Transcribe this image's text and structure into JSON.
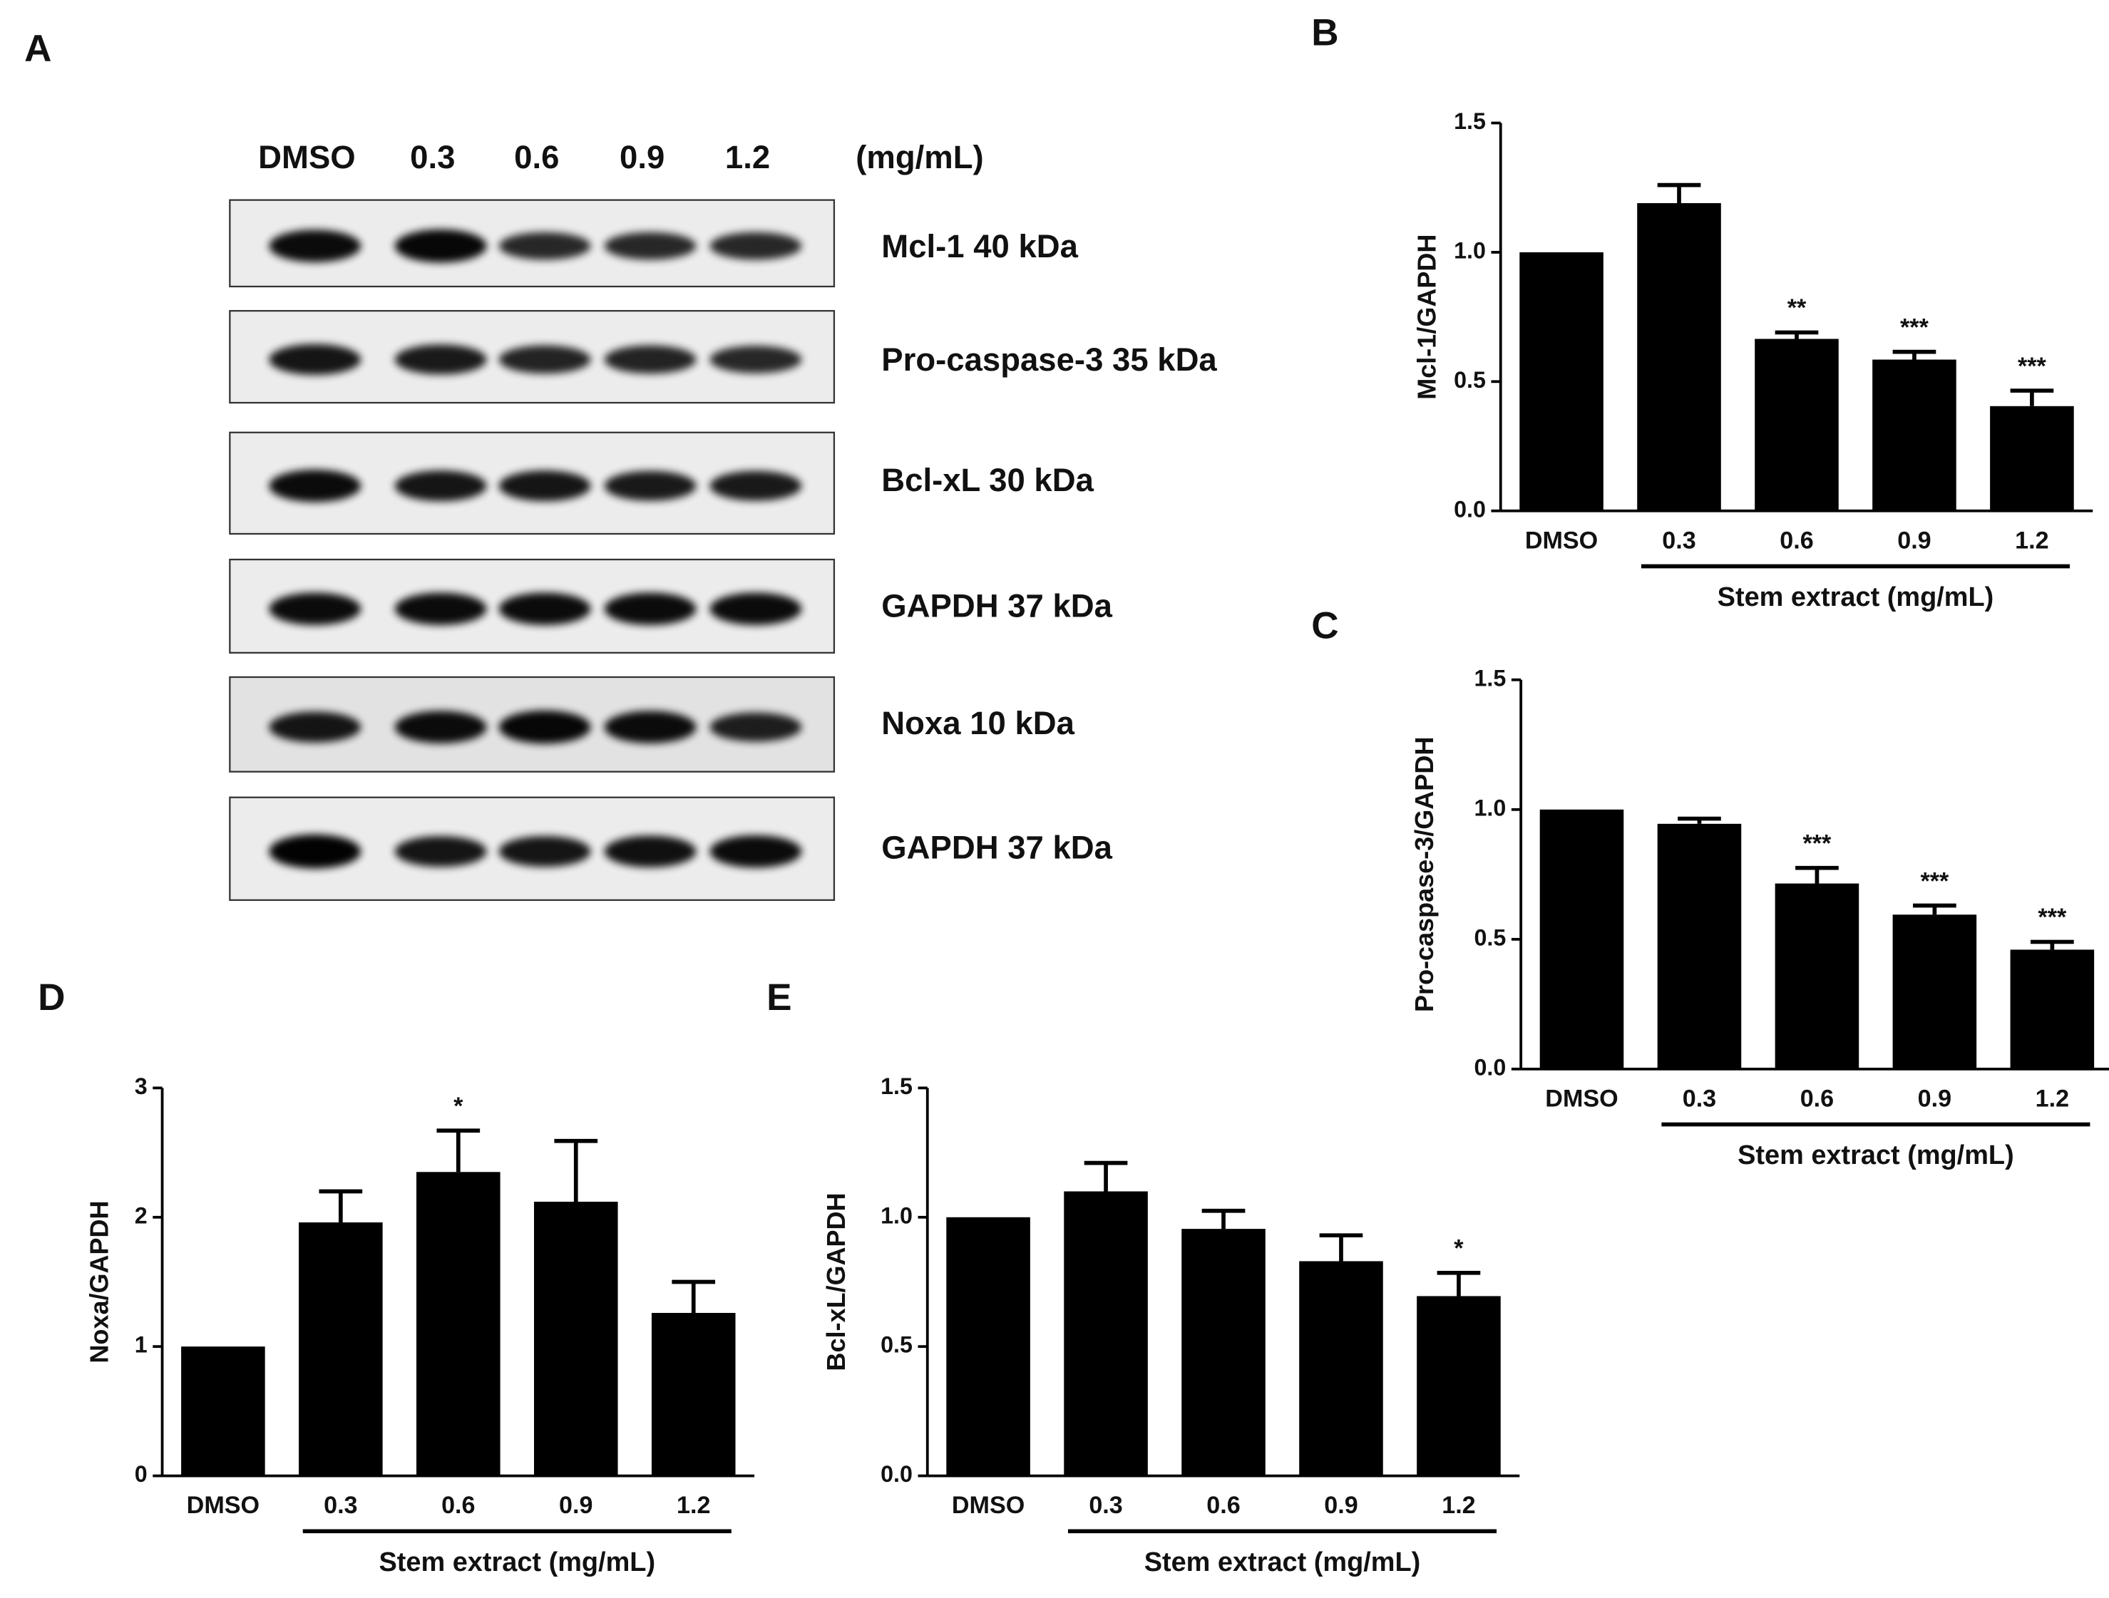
{
  "blot": {
    "panel": "A",
    "lanes": [
      "DMSO",
      "0.3",
      "0.6",
      "0.9",
      "1.2"
    ],
    "unit": "(mg/mL)",
    "bands": [
      "Mcl-1 40 kDa",
      "Pro-caspase-3 35 kDa",
      "Bcl-xL 30 kDa",
      "GAPDH 37 kDa",
      "Noxa 10 kDa",
      "GAPDH 37 kDa"
    ]
  },
  "chart_data": [
    {
      "type": "bar",
      "panel": "B",
      "ylabel": "Mcl-1/GAPDH",
      "xlabel": "Stem extract (mg/mL)",
      "color": "#000000",
      "categories": [
        "DMSO",
        "0.3",
        "0.6",
        "0.9",
        "1.2"
      ],
      "values": [
        1.0,
        1.19,
        0.665,
        0.585,
        0.405
      ],
      "errors": [
        0,
        0.07,
        0.025,
        0.03,
        0.06
      ],
      "annotations": [
        null,
        null,
        "**",
        "***",
        "***"
      ],
      "ylim": [
        0,
        1.5
      ],
      "yticks": [
        {
          "value": 0,
          "label": "0.0"
        },
        {
          "value": 0.5,
          "label": "0.5"
        },
        {
          "value": 1,
          "label": "1.0"
        },
        {
          "value": 1.5,
          "label": "1.5"
        }
      ]
    },
    {
      "type": "bar",
      "panel": "C",
      "ylabel": "Pro-caspase-3/GAPDH",
      "xlabel": "Stem extract (mg/mL)",
      "color": "#000000",
      "categories": [
        "DMSO",
        "0.3",
        "0.6",
        "0.9",
        "1.2"
      ],
      "values": [
        1.0,
        0.945,
        0.715,
        0.595,
        0.46
      ],
      "errors": [
        0,
        0.02,
        0.06,
        0.035,
        0.03
      ],
      "annotations": [
        null,
        null,
        "***",
        "***",
        "***"
      ],
      "ylim": [
        0,
        1.5
      ],
      "yticks": [
        {
          "value": 0,
          "label": "0.0"
        },
        {
          "value": 0.5,
          "label": "0.5"
        },
        {
          "value": 1,
          "label": "1.0"
        },
        {
          "value": 1.5,
          "label": "1.5"
        }
      ]
    },
    {
      "type": "bar",
      "panel": "D",
      "ylabel": "Noxa/GAPDH",
      "xlabel": "Stem extract (mg/mL)",
      "color": "#000000",
      "categories": [
        "DMSO",
        "0.3",
        "0.6",
        "0.9",
        "1.2"
      ],
      "values": [
        1.0,
        1.96,
        2.35,
        2.12,
        1.26
      ],
      "errors": [
        0,
        0.24,
        0.32,
        0.47,
        0.24
      ],
      "annotations": [
        null,
        null,
        "*",
        null,
        null
      ],
      "ylim": [
        0,
        3
      ],
      "yticks": [
        0,
        1,
        2,
        3
      ]
    },
    {
      "type": "bar",
      "panel": "E",
      "ylabel": "Bcl-xL/GAPDH",
      "xlabel": "Stem extract (mg/mL)",
      "color": "#000000",
      "categories": [
        "DMSO",
        "0.3",
        "0.6",
        "0.9",
        "1.2"
      ],
      "values": [
        1.0,
        1.1,
        0.955,
        0.83,
        0.695
      ],
      "errors": [
        0,
        0.11,
        0.07,
        0.1,
        0.09
      ],
      "annotations": [
        null,
        null,
        null,
        null,
        "*"
      ],
      "ylim": [
        0,
        1.5
      ],
      "yticks": [
        {
          "value": 0,
          "label": "0.0"
        },
        {
          "value": 0.5,
          "label": "0.5"
        },
        {
          "value": 1,
          "label": "1.0"
        },
        {
          "value": 1.5,
          "label": "1.5"
        }
      ]
    }
  ]
}
